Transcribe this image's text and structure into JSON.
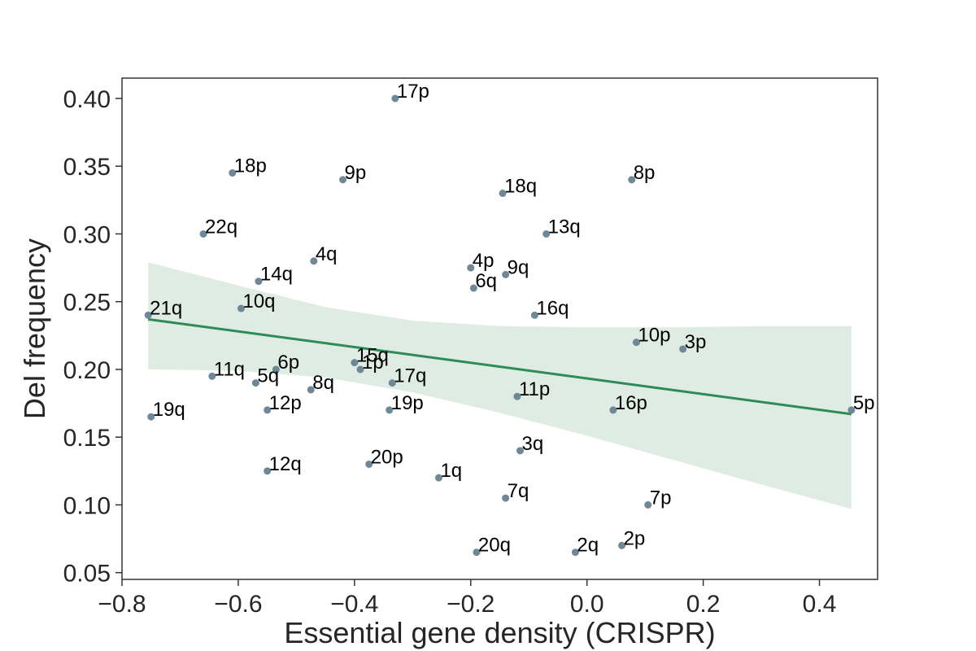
{
  "chart_data": {
    "type": "scatter",
    "title": "",
    "xlabel": "Essential gene density (CRISPR)",
    "ylabel": "Del frequency",
    "xlim": [
      -0.8,
      0.5
    ],
    "ylim": [
      0.045,
      0.415
    ],
    "xticks": [
      -0.8,
      -0.6,
      -0.4,
      -0.2,
      0.0,
      0.2,
      0.4
    ],
    "xtick_labels": [
      "−0.8",
      "−0.6",
      "−0.4",
      "−0.2",
      "0.0",
      "0.2",
      "0.4"
    ],
    "yticks": [
      0.05,
      0.1,
      0.15,
      0.2,
      0.25,
      0.3,
      0.35,
      0.4
    ],
    "ytick_labels": [
      "0.05",
      "0.10",
      "0.15",
      "0.20",
      "0.25",
      "0.30",
      "0.35",
      "0.40"
    ],
    "grid": false,
    "points": [
      {
        "label": "17p",
        "x": -0.33,
        "y": 0.4
      },
      {
        "label": "18p",
        "x": -0.61,
        "y": 0.345
      },
      {
        "label": "9p",
        "x": -0.42,
        "y": 0.34
      },
      {
        "label": "18q",
        "x": -0.145,
        "y": 0.33
      },
      {
        "label": "8p",
        "x": 0.077,
        "y": 0.34
      },
      {
        "label": "22q",
        "x": -0.66,
        "y": 0.3
      },
      {
        "label": "13q",
        "x": -0.07,
        "y": 0.3
      },
      {
        "label": "4q",
        "x": -0.47,
        "y": 0.28
      },
      {
        "label": "14q",
        "x": -0.565,
        "y": 0.265
      },
      {
        "label": "4p",
        "x": -0.2,
        "y": 0.275
      },
      {
        "label": "9q",
        "x": -0.14,
        "y": 0.27
      },
      {
        "label": "6q",
        "x": -0.195,
        "y": 0.26
      },
      {
        "label": "21q",
        "x": -0.755,
        "y": 0.24
      },
      {
        "label": "10q",
        "x": -0.595,
        "y": 0.245
      },
      {
        "label": "16q",
        "x": -0.09,
        "y": 0.24
      },
      {
        "label": "10p",
        "x": 0.085,
        "y": 0.22
      },
      {
        "label": "3p",
        "x": 0.165,
        "y": 0.215
      },
      {
        "label": "15q",
        "x": -0.4,
        "y": 0.205
      },
      {
        "label": "1p",
        "x": -0.39,
        "y": 0.2
      },
      {
        "label": "6p",
        "x": -0.535,
        "y": 0.2
      },
      {
        "label": "11q",
        "x": -0.645,
        "y": 0.195
      },
      {
        "label": "5q",
        "x": -0.57,
        "y": 0.19
      },
      {
        "label": "8q",
        "x": -0.475,
        "y": 0.185
      },
      {
        "label": "17q",
        "x": -0.335,
        "y": 0.19
      },
      {
        "label": "11p",
        "x": -0.12,
        "y": 0.18
      },
      {
        "label": "12p",
        "x": -0.55,
        "y": 0.17
      },
      {
        "label": "19p",
        "x": -0.34,
        "y": 0.17
      },
      {
        "label": "16p",
        "x": 0.045,
        "y": 0.17
      },
      {
        "label": "5p",
        "x": 0.455,
        "y": 0.17
      },
      {
        "label": "19q",
        "x": -0.75,
        "y": 0.165
      },
      {
        "label": "3q",
        "x": -0.115,
        "y": 0.14
      },
      {
        "label": "12q",
        "x": -0.55,
        "y": 0.125
      },
      {
        "label": "20p",
        "x": -0.375,
        "y": 0.13
      },
      {
        "label": "1q",
        "x": -0.255,
        "y": 0.12
      },
      {
        "label": "7q",
        "x": -0.14,
        "y": 0.105
      },
      {
        "label": "7p",
        "x": 0.105,
        "y": 0.1
      },
      {
        "label": "20q",
        "x": -0.19,
        "y": 0.065
      },
      {
        "label": "2q",
        "x": -0.02,
        "y": 0.065
      },
      {
        "label": "2p",
        "x": 0.06,
        "y": 0.07
      }
    ],
    "regression_line": {
      "x": [
        -0.755,
        0.455
      ],
      "y": [
        0.237,
        0.167
      ]
    },
    "confidence_band": {
      "x": [
        -0.755,
        -0.6,
        -0.45,
        -0.3,
        -0.15,
        0.0,
        0.15,
        0.3,
        0.455
      ],
      "upper": [
        0.279,
        0.262,
        0.246,
        0.236,
        0.232,
        0.231,
        0.231,
        0.232,
        0.232
      ],
      "lower": [
        0.2,
        0.199,
        0.194,
        0.183,
        0.168,
        0.151,
        0.133,
        0.115,
        0.097
      ]
    },
    "colors": {
      "point": "#6e8898",
      "line": "#2e8b57",
      "band": "#dfece4",
      "axis": "#333333"
    }
  }
}
